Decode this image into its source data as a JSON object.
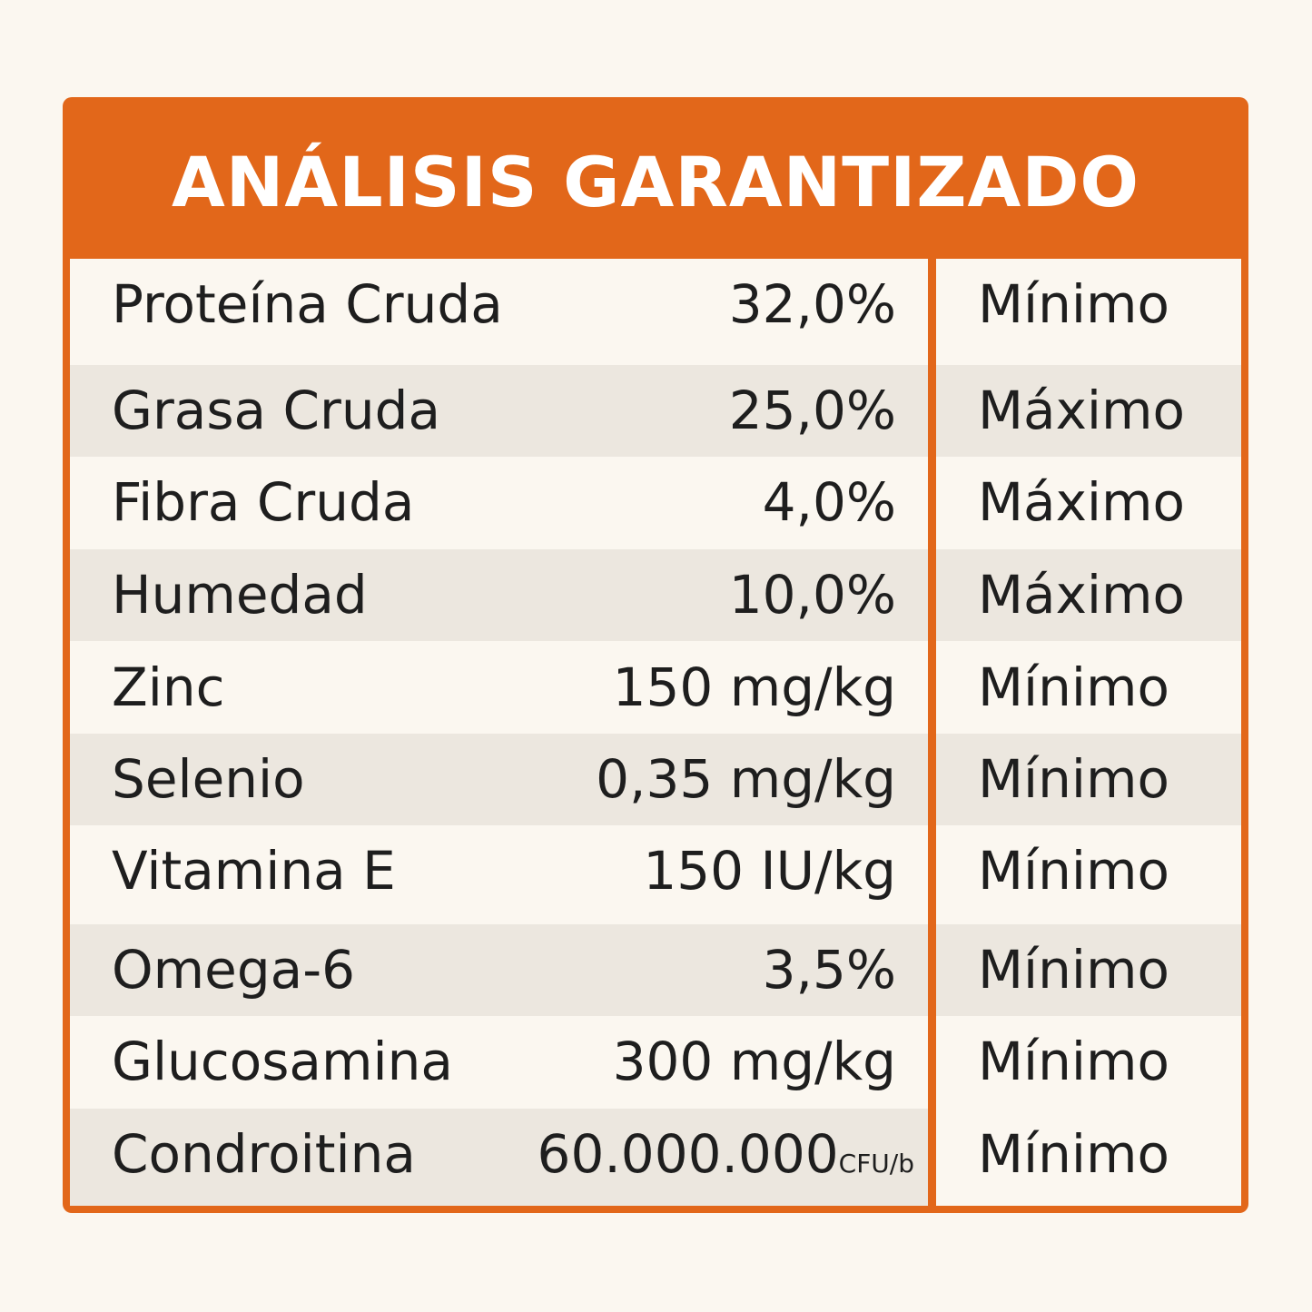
{
  "title": "ANÁLISIS GARANTIZADO",
  "rows": [
    {
      "name": "Proteína Cruda",
      "value": "32,0%",
      "unit_small": "",
      "basis": "Mínimo"
    },
    {
      "name": "Grasa Cruda",
      "value": "25,0%",
      "unit_small": "",
      "basis": "Máximo"
    },
    {
      "name": "Fibra Cruda",
      "value": "4,0%",
      "unit_small": "",
      "basis": "Máximo"
    },
    {
      "name": "Humedad",
      "value": "10,0%",
      "unit_small": "",
      "basis": "Máximo"
    },
    {
      "name": "Zinc",
      "value": "150 mg/kg",
      "unit_small": "",
      "basis": "Mínimo"
    },
    {
      "name": "Selenio",
      "value": "0,35 mg/kg",
      "unit_small": "",
      "basis": "Mínimo"
    },
    {
      "name": "Vitamina E",
      "value": "150 IU/kg",
      "unit_small": "",
      "basis": "Mínimo"
    },
    {
      "name": "Omega-6",
      "value": "3,5%",
      "unit_small": "",
      "basis": "Mínimo"
    },
    {
      "name": "Glucosamina",
      "value": "300 mg/kg",
      "unit_small": "",
      "basis": "Mínimo"
    },
    {
      "name": "Condroitina",
      "value": "60.000.000",
      "unit_small": "CFU/b",
      "basis": "Mínimo"
    }
  ]
}
